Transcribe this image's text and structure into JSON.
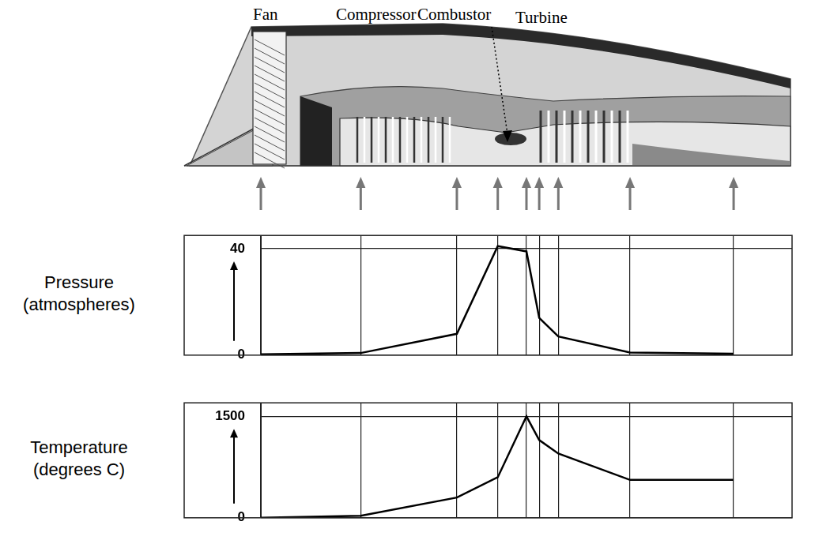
{
  "diagram": {
    "labels": [
      "Fan",
      "Compressor",
      "Combustor",
      "Turbine"
    ]
  },
  "chart_data": [
    {
      "type": "line",
      "y_label": "Pressure (atmospheres)",
      "x": [
        0,
        18.8,
        36.9,
        44.6,
        50,
        52.4,
        56,
        69.5,
        89
      ],
      "values": [
        0.3,
        0.8,
        8,
        41,
        39,
        14,
        7,
        1,
        0.5
      ],
      "xlim": [
        0,
        100
      ],
      "xticks": [
        0,
        18.8,
        36.9,
        44.6,
        50,
        52.4,
        56,
        69.5,
        89
      ],
      "ylim": [
        0,
        45
      ],
      "yticks": [
        0,
        40
      ],
      "grid": true,
      "tick_labels": "y",
      "color": "#000000"
    },
    {
      "type": "line",
      "y_label": "Temperature (degrees C)",
      "x": [
        0,
        18.8,
        36.9,
        44.6,
        50,
        52.4,
        56,
        69.5,
        89
      ],
      "values": [
        0,
        30,
        300,
        600,
        1500,
        1150,
        950,
        560,
        560
      ],
      "xlim": [
        0,
        100
      ],
      "xticks": [
        0,
        18.8,
        36.9,
        44.6,
        50,
        52.4,
        56,
        69.5,
        89
      ],
      "ylim": [
        0,
        1700
      ],
      "yticks": [
        0,
        1500
      ],
      "grid": true,
      "tick_labels": "y",
      "color": "#000000"
    }
  ]
}
